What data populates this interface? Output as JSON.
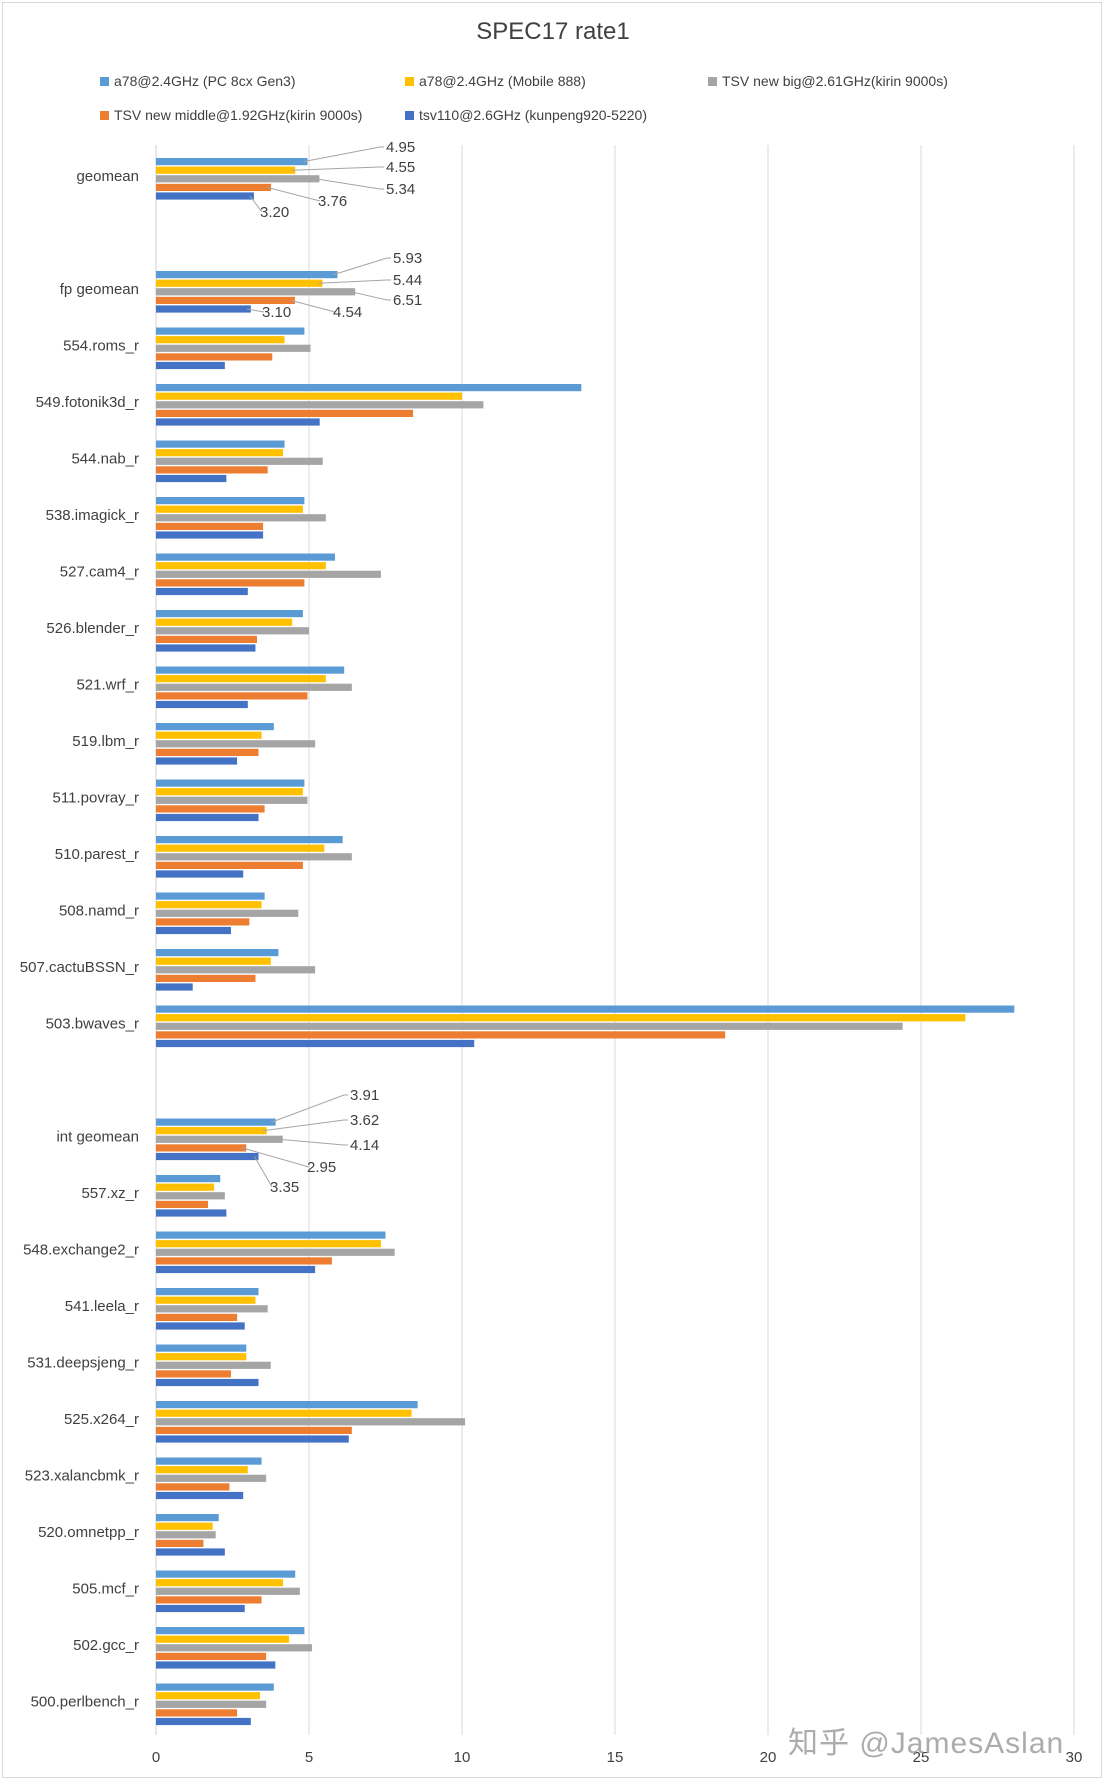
{
  "chart_data": {
    "type": "bar",
    "orientation": "horizontal",
    "title": "SPEC17 rate1",
    "xlabel": "",
    "ylabel": "",
    "xlim": [
      0,
      30
    ],
    "xticks": [
      0,
      5,
      10,
      15,
      20,
      25,
      30
    ],
    "grid": true,
    "legend_position": "top",
    "categories": [
      "geomean",
      "",
      "fp geomean",
      "554.roms_r",
      "549.fotonik3d_r",
      "544.nab_r",
      "538.imagick_r",
      "527.cam4_r",
      "526.blender_r",
      "521.wrf_r",
      "519.lbm_r",
      "511.povray_r",
      "510.parest_r",
      "508.namd_r",
      "507.cactuBSSN_r",
      "503.bwaves_r",
      "",
      "int geomean",
      "557.xz_r",
      "548.exchange2_r",
      "541.leela_r",
      "531.deepsjeng_r",
      "525.x264_r",
      "523.xalancbmk_r",
      "520.omnetpp_r",
      "505.mcf_r",
      "502.gcc_r",
      "500.perlbench_r"
    ],
    "series": [
      {
        "name": "a78@2.4GHz (PC 8cx Gen3)",
        "color": "#5b9bd5",
        "values": [
          4.95,
          null,
          5.93,
          4.85,
          13.9,
          4.2,
          4.85,
          5.85,
          4.8,
          6.15,
          3.85,
          4.85,
          6.1,
          3.55,
          4.0,
          28.05,
          null,
          3.91,
          2.1,
          7.5,
          3.35,
          2.95,
          8.55,
          3.45,
          2.05,
          4.55,
          4.85,
          3.85
        ]
      },
      {
        "name": "a78@2.4GHz (Mobile 888)",
        "color": "#ffc000",
        "values": [
          4.55,
          null,
          5.44,
          4.2,
          10.0,
          4.15,
          4.8,
          5.55,
          4.45,
          5.55,
          3.45,
          4.8,
          5.5,
          3.45,
          3.75,
          26.45,
          null,
          3.62,
          1.9,
          7.35,
          3.25,
          2.95,
          8.35,
          3.0,
          1.85,
          4.15,
          4.35,
          3.4
        ]
      },
      {
        "name": "TSV new big@2.61GHz(kirin 9000s)",
        "color": "#a5a5a5",
        "values": [
          5.34,
          null,
          6.51,
          5.05,
          10.7,
          5.45,
          5.55,
          7.35,
          5.0,
          6.4,
          5.2,
          4.95,
          6.4,
          4.65,
          5.2,
          24.4,
          null,
          4.14,
          2.25,
          7.8,
          3.65,
          3.75,
          10.1,
          3.6,
          1.95,
          4.7,
          5.1,
          3.6
        ]
      },
      {
        "name": "TSV new middle@1.92GHz(kirin 9000s)",
        "color": "#ed7d31",
        "values": [
          3.76,
          null,
          4.54,
          3.8,
          8.4,
          3.65,
          3.5,
          4.85,
          3.3,
          4.95,
          3.35,
          3.55,
          4.8,
          3.05,
          3.25,
          18.6,
          null,
          2.95,
          1.7,
          5.75,
          2.65,
          2.45,
          6.4,
          2.4,
          1.55,
          3.45,
          3.6,
          2.65
        ]
      },
      {
        "name": "tsv110@2.6GHz (kunpeng920-5220)",
        "color": "#4472c4",
        "values": [
          3.2,
          null,
          3.1,
          2.25,
          5.35,
          2.3,
          3.5,
          3.0,
          3.25,
          3.0,
          2.65,
          3.35,
          2.85,
          2.45,
          1.2,
          10.4,
          null,
          3.35,
          2.3,
          5.2,
          2.9,
          3.35,
          6.3,
          2.85,
          2.25,
          2.9,
          3.9,
          3.1
        ]
      }
    ],
    "data_labels": {
      "geomean": [
        "4.95",
        "4.55",
        "5.34",
        "3.76",
        "3.20"
      ],
      "fp geomean": [
        "5.93",
        "5.44",
        "6.51",
        "4.54",
        "3.10"
      ],
      "int geomean": [
        "3.91",
        "3.62",
        "4.14",
        "2.95",
        "3.35"
      ]
    }
  },
  "watermark": "知乎 @JamesAslan"
}
